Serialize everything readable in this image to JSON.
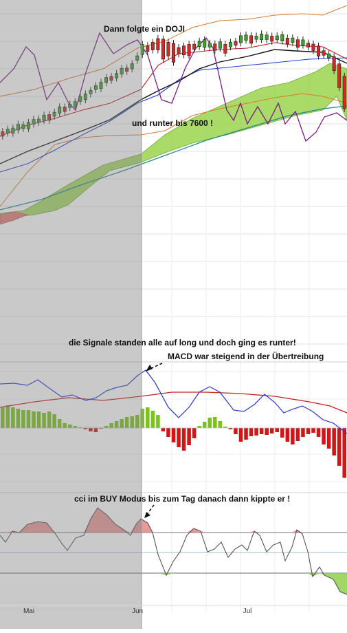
{
  "chart_data": [
    {
      "type": "candlestick",
      "panel": "price",
      "overlays": [
        "ichimoku-cloud",
        "bollinger-bands",
        "moving-averages"
      ],
      "candles_count": 67,
      "colors": {
        "up": "#3aa626",
        "down": "#d12a2a",
        "cloud_bull": "#9bd34e",
        "cloud_bear": "#e27f7f",
        "bb": "#d87a2a",
        "ma_fast": "#c01818",
        "ma_mid": "#111111",
        "ma_slow": "#1e3fd6",
        "ma_long": "#1a8a8a",
        "oscillator": "#7a1b82"
      },
      "annotations": [
        "Dann folgte ein DOJI",
        "und runter bis 7600 !"
      ]
    },
    {
      "type": "line+bar",
      "panel": "macd",
      "series": [
        {
          "name": "",
          "color": "#2434d8"
        },
        {
          "name": "",
          "color": "#c81e1e"
        }
      ],
      "histogram_values": [
        6.2,
        6.6,
        6.0,
        5.6,
        5.2,
        5.2,
        4.8,
        4.8,
        4.4,
        4.8,
        4.0,
        2.6,
        1.4,
        1.0,
        0.6,
        0.2,
        -0.4,
        -1.0,
        -1.2,
        -0.2,
        0.6,
        1.4,
        2.0,
        2.6,
        3.2,
        3.4,
        3.8,
        5.6,
        6.0,
        5.0,
        3.8,
        -1.0,
        -2.6,
        -4.2,
        -5.6,
        -6.6,
        -5.0,
        -3.0,
        0.6,
        1.8,
        3.0,
        3.2,
        2.0,
        0.4,
        -0.4,
        -1.8,
        -4.0,
        -3.4,
        -2.4,
        -2.2,
        -1.8,
        -2.0,
        -1.6,
        -1.2,
        -2.8,
        -4.0,
        -4.8,
        -3.8,
        -2.6,
        -1.8,
        -1.4,
        -2.6,
        -4.8,
        -6.0,
        -8.0,
        -11.0,
        -14.5
      ],
      "annotations": [
        "die Signale standen alle auf long und doch ging es runter!",
        "MACD war steigend in der Übertreibung"
      ]
    },
    {
      "type": "line",
      "panel": "cci",
      "series": [
        {
          "name": "",
          "color": "#555555"
        }
      ],
      "reference_lines": [
        100,
        0,
        -100
      ],
      "annotations": [
        "cci im BUY Modus bis zum Tag danach dann kippte er !"
      ]
    }
  ],
  "x_axis": {
    "tick_labels": [
      "Mai",
      "Jun",
      "Jul"
    ]
  }
}
